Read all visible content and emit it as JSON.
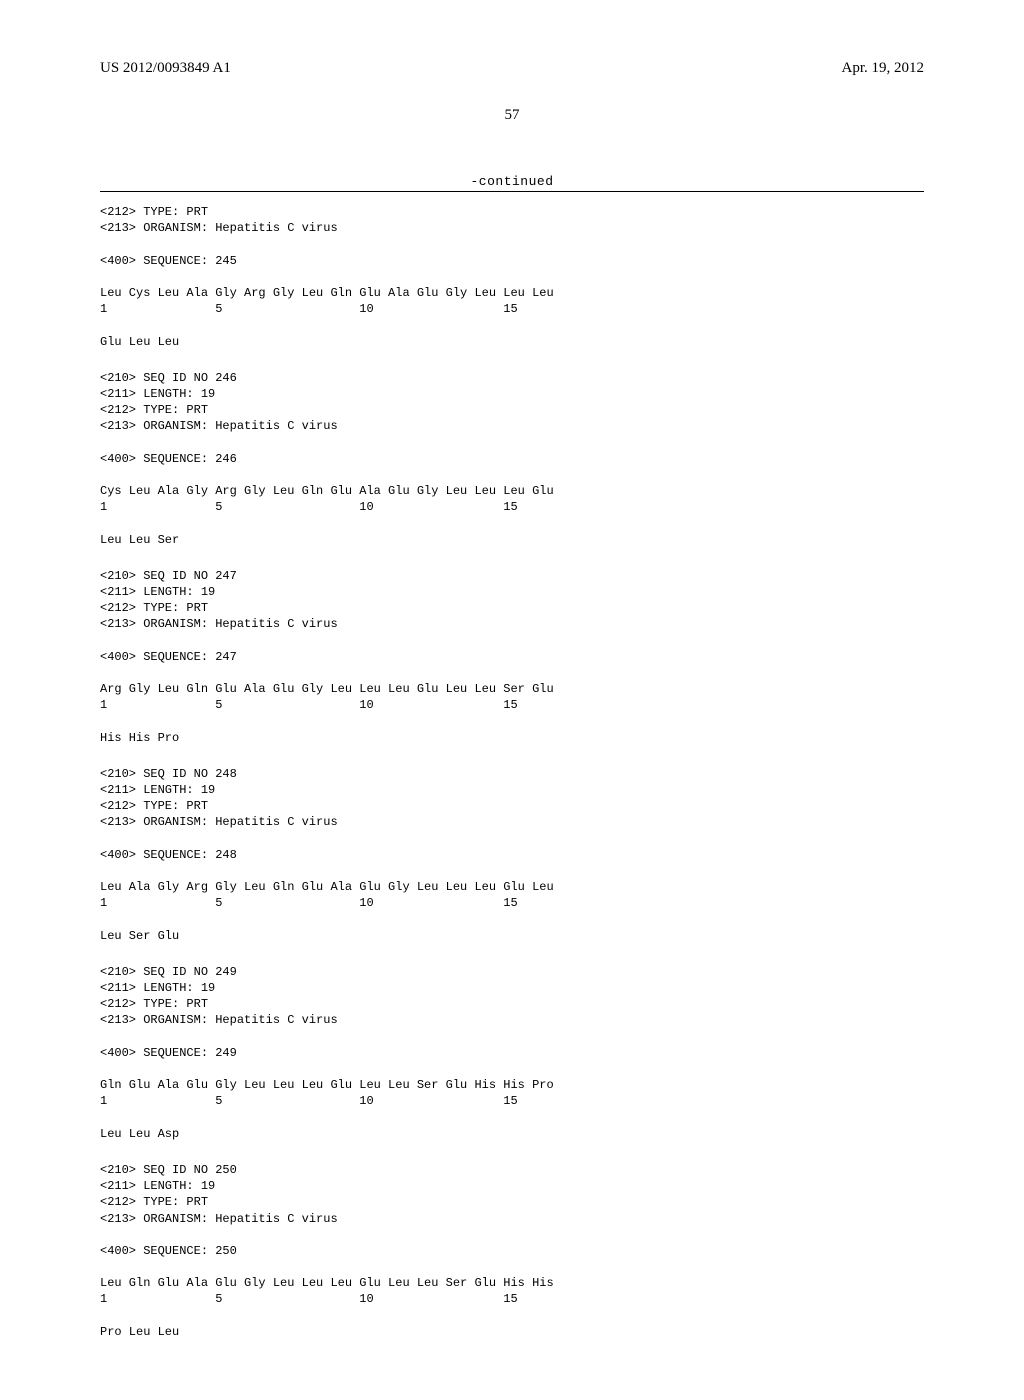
{
  "header": {
    "pub_number": "US 2012/0093849 A1",
    "pub_date": "Apr. 19, 2012"
  },
  "page_number": "57",
  "continued_label": "-continued",
  "sequences": [
    {
      "lines": [
        "<212> TYPE: PRT",
        "<213> ORGANISM: Hepatitis C virus",
        "",
        "<400> SEQUENCE: 245",
        "",
        "Leu Cys Leu Ala Gly Arg Gly Leu Gln Glu Ala Glu Gly Leu Leu Leu",
        "1               5                   10                  15",
        "",
        "Glu Leu Leu"
      ]
    },
    {
      "lines": [
        "<210> SEQ ID NO 246",
        "<211> LENGTH: 19",
        "<212> TYPE: PRT",
        "<213> ORGANISM: Hepatitis C virus",
        "",
        "<400> SEQUENCE: 246",
        "",
        "Cys Leu Ala Gly Arg Gly Leu Gln Glu Ala Glu Gly Leu Leu Leu Glu",
        "1               5                   10                  15",
        "",
        "Leu Leu Ser"
      ]
    },
    {
      "lines": [
        "<210> SEQ ID NO 247",
        "<211> LENGTH: 19",
        "<212> TYPE: PRT",
        "<213> ORGANISM: Hepatitis C virus",
        "",
        "<400> SEQUENCE: 247",
        "",
        "Arg Gly Leu Gln Glu Ala Glu Gly Leu Leu Leu Glu Leu Leu Ser Glu",
        "1               5                   10                  15",
        "",
        "His His Pro"
      ]
    },
    {
      "lines": [
        "<210> SEQ ID NO 248",
        "<211> LENGTH: 19",
        "<212> TYPE: PRT",
        "<213> ORGANISM: Hepatitis C virus",
        "",
        "<400> SEQUENCE: 248",
        "",
        "Leu Ala Gly Arg Gly Leu Gln Glu Ala Glu Gly Leu Leu Leu Glu Leu",
        "1               5                   10                  15",
        "",
        "Leu Ser Glu"
      ]
    },
    {
      "lines": [
        "<210> SEQ ID NO 249",
        "<211> LENGTH: 19",
        "<212> TYPE: PRT",
        "<213> ORGANISM: Hepatitis C virus",
        "",
        "<400> SEQUENCE: 249",
        "",
        "Gln Glu Ala Glu Gly Leu Leu Leu Glu Leu Leu Ser Glu His His Pro",
        "1               5                   10                  15",
        "",
        "Leu Leu Asp"
      ]
    },
    {
      "lines": [
        "<210> SEQ ID NO 250",
        "<211> LENGTH: 19",
        "<212> TYPE: PRT",
        "<213> ORGANISM: Hepatitis C virus",
        "",
        "<400> SEQUENCE: 250",
        "",
        "Leu Gln Glu Ala Glu Gly Leu Leu Leu Glu Leu Leu Ser Glu His His",
        "1               5                   10                  15",
        "",
        "Pro Leu Leu"
      ]
    }
  ]
}
